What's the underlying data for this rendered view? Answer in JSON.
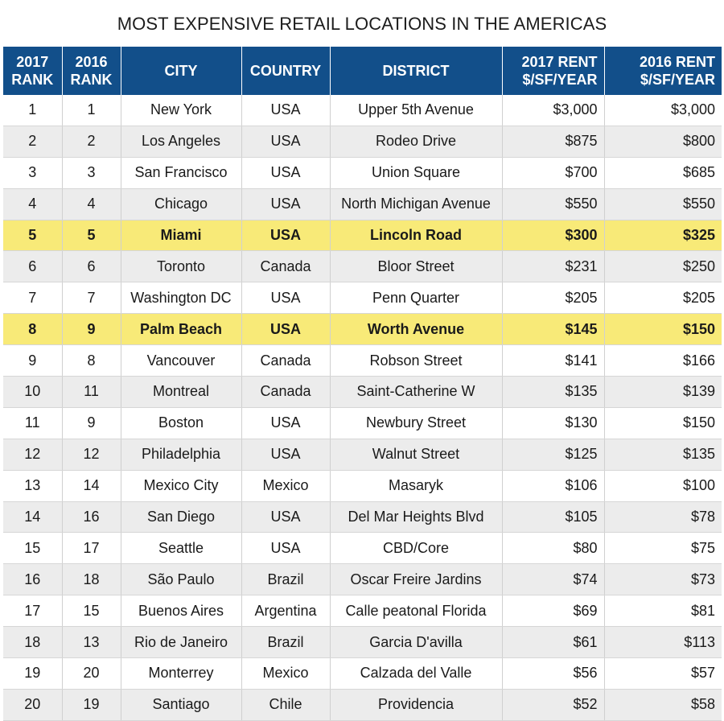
{
  "title": "MOST EXPENSIVE RETAIL LOCATIONS IN THE AMERICAS",
  "columns": [
    "2017 RANK",
    "2016 RANK",
    "CITY",
    "COUNTRY",
    "DISTRICT",
    "2017 RENT $/SF/YEAR",
    "2016 RENT $/SF/YEAR"
  ],
  "highlight_color": "#f8ea78",
  "header_color": "#124f8a",
  "rows": [
    {
      "r2017": "1",
      "r2016": "1",
      "city": "New York",
      "country": "USA",
      "district": "Upper 5th Avenue",
      "rent2017": "$3,000",
      "rent2016": "$3,000",
      "highlighted": false
    },
    {
      "r2017": "2",
      "r2016": "2",
      "city": "Los Angeles",
      "country": "USA",
      "district": "Rodeo Drive",
      "rent2017": "$875",
      "rent2016": "$800",
      "highlighted": false
    },
    {
      "r2017": "3",
      "r2016": "3",
      "city": "San Francisco",
      "country": "USA",
      "district": "Union Square",
      "rent2017": "$700",
      "rent2016": "$685",
      "highlighted": false
    },
    {
      "r2017": "4",
      "r2016": "4",
      "city": "Chicago",
      "country": "USA",
      "district": "North Michigan Avenue",
      "rent2017": "$550",
      "rent2016": "$550",
      "highlighted": false
    },
    {
      "r2017": "5",
      "r2016": "5",
      "city": "Miami",
      "country": "USA",
      "district": "Lincoln Road",
      "rent2017": "$300",
      "rent2016": "$325",
      "highlighted": true
    },
    {
      "r2017": "6",
      "r2016": "6",
      "city": "Toronto",
      "country": "Canada",
      "district": "Bloor Street",
      "rent2017": "$231",
      "rent2016": "$250",
      "highlighted": false
    },
    {
      "r2017": "7",
      "r2016": "7",
      "city": "Washington DC",
      "country": "USA",
      "district": "Penn Quarter",
      "rent2017": "$205",
      "rent2016": "$205",
      "highlighted": false
    },
    {
      "r2017": "8",
      "r2016": "9",
      "city": "Palm Beach",
      "country": "USA",
      "district": "Worth Avenue",
      "rent2017": "$145",
      "rent2016": "$150",
      "highlighted": true
    },
    {
      "r2017": "9",
      "r2016": "8",
      "city": "Vancouver",
      "country": "Canada",
      "district": "Robson Street",
      "rent2017": "$141",
      "rent2016": "$166",
      "highlighted": false
    },
    {
      "r2017": "10",
      "r2016": "11",
      "city": "Montreal",
      "country": "Canada",
      "district": "Saint-Catherine W",
      "rent2017": "$135",
      "rent2016": "$139",
      "highlighted": false
    },
    {
      "r2017": "11",
      "r2016": "9",
      "city": "Boston",
      "country": "USA",
      "district": "Newbury Street",
      "rent2017": "$130",
      "rent2016": "$150",
      "highlighted": false
    },
    {
      "r2017": "12",
      "r2016": "12",
      "city": "Philadelphia",
      "country": "USA",
      "district": "Walnut Street",
      "rent2017": "$125",
      "rent2016": "$135",
      "highlighted": false
    },
    {
      "r2017": "13",
      "r2016": "14",
      "city": "Mexico City",
      "country": "Mexico",
      "district": "Masaryk",
      "rent2017": "$106",
      "rent2016": "$100",
      "highlighted": false
    },
    {
      "r2017": "14",
      "r2016": "16",
      "city": "San Diego",
      "country": "USA",
      "district": "Del Mar Heights Blvd",
      "rent2017": "$105",
      "rent2016": "$78",
      "highlighted": false
    },
    {
      "r2017": "15",
      "r2016": "17",
      "city": "Seattle",
      "country": "USA",
      "district": "CBD/Core",
      "rent2017": "$80",
      "rent2016": "$75",
      "highlighted": false
    },
    {
      "r2017": "16",
      "r2016": "18",
      "city": "São Paulo",
      "country": "Brazil",
      "district": "Oscar Freire Jardins",
      "rent2017": "$74",
      "rent2016": "$73",
      "highlighted": false
    },
    {
      "r2017": "17",
      "r2016": "15",
      "city": "Buenos Aires",
      "country": "Argentina",
      "district": "Calle peatonal Florida",
      "rent2017": "$69",
      "rent2016": "$81",
      "highlighted": false
    },
    {
      "r2017": "18",
      "r2016": "13",
      "city": "Rio de Janeiro",
      "country": "Brazil",
      "district": "Garcia D'avilla",
      "rent2017": "$61",
      "rent2016": "$113",
      "highlighted": false
    },
    {
      "r2017": "19",
      "r2016": "20",
      "city": "Monterrey",
      "country": "Mexico",
      "district": "Calzada del Valle",
      "rent2017": "$56",
      "rent2016": "$57",
      "highlighted": false
    },
    {
      "r2017": "20",
      "r2016": "19",
      "city": "Santiago",
      "country": "Chile",
      "district": "Providencia",
      "rent2017": "$52",
      "rent2016": "$58",
      "highlighted": false
    }
  ]
}
